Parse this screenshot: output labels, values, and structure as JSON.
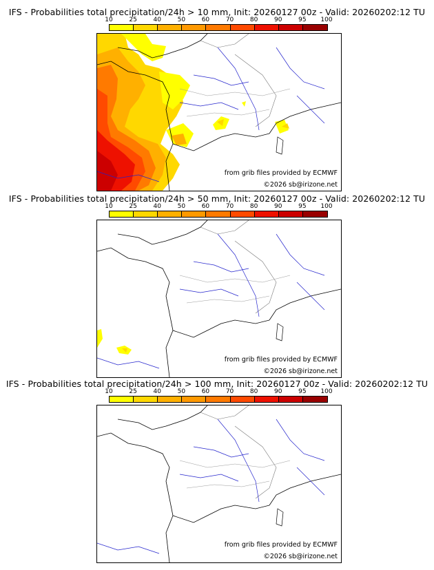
{
  "legend": {
    "levels": [
      "10",
      "25",
      "40",
      "50",
      "60",
      "70",
      "80",
      "90",
      "95",
      "100"
    ],
    "colors": [
      "#ffff00",
      "#ffd800",
      "#ffb000",
      "#ff9900",
      "#ff7a00",
      "#ff4a00",
      "#ee1100",
      "#cc0000",
      "#990000",
      "#660000"
    ]
  },
  "panels": [
    {
      "title": "IFS - Probabilities total precipitation/24h > 10 mm, Init: 20260127 00z - Valid: 20260202:12 TU",
      "credit_source": "from grib files provided by ECMWF",
      "credit_copyright": "©2026 sb@irizone.net"
    },
    {
      "title": "IFS - Probabilities total precipitation/24h > 50 mm, Init: 20260127 00z - Valid: 20260202:12 TU",
      "credit_source": "from grib files provided by ECMWF",
      "credit_copyright": "©2026 sb@irizone.net"
    },
    {
      "title": "IFS - Probabilities total precipitation/24h > 100 mm, Init: 20260127 00z - Valid: 20260202:12 TU",
      "credit_source": "from grib files provided by ECMWF",
      "credit_copyright": "©2026 sb@irizone.net"
    }
  ]
}
